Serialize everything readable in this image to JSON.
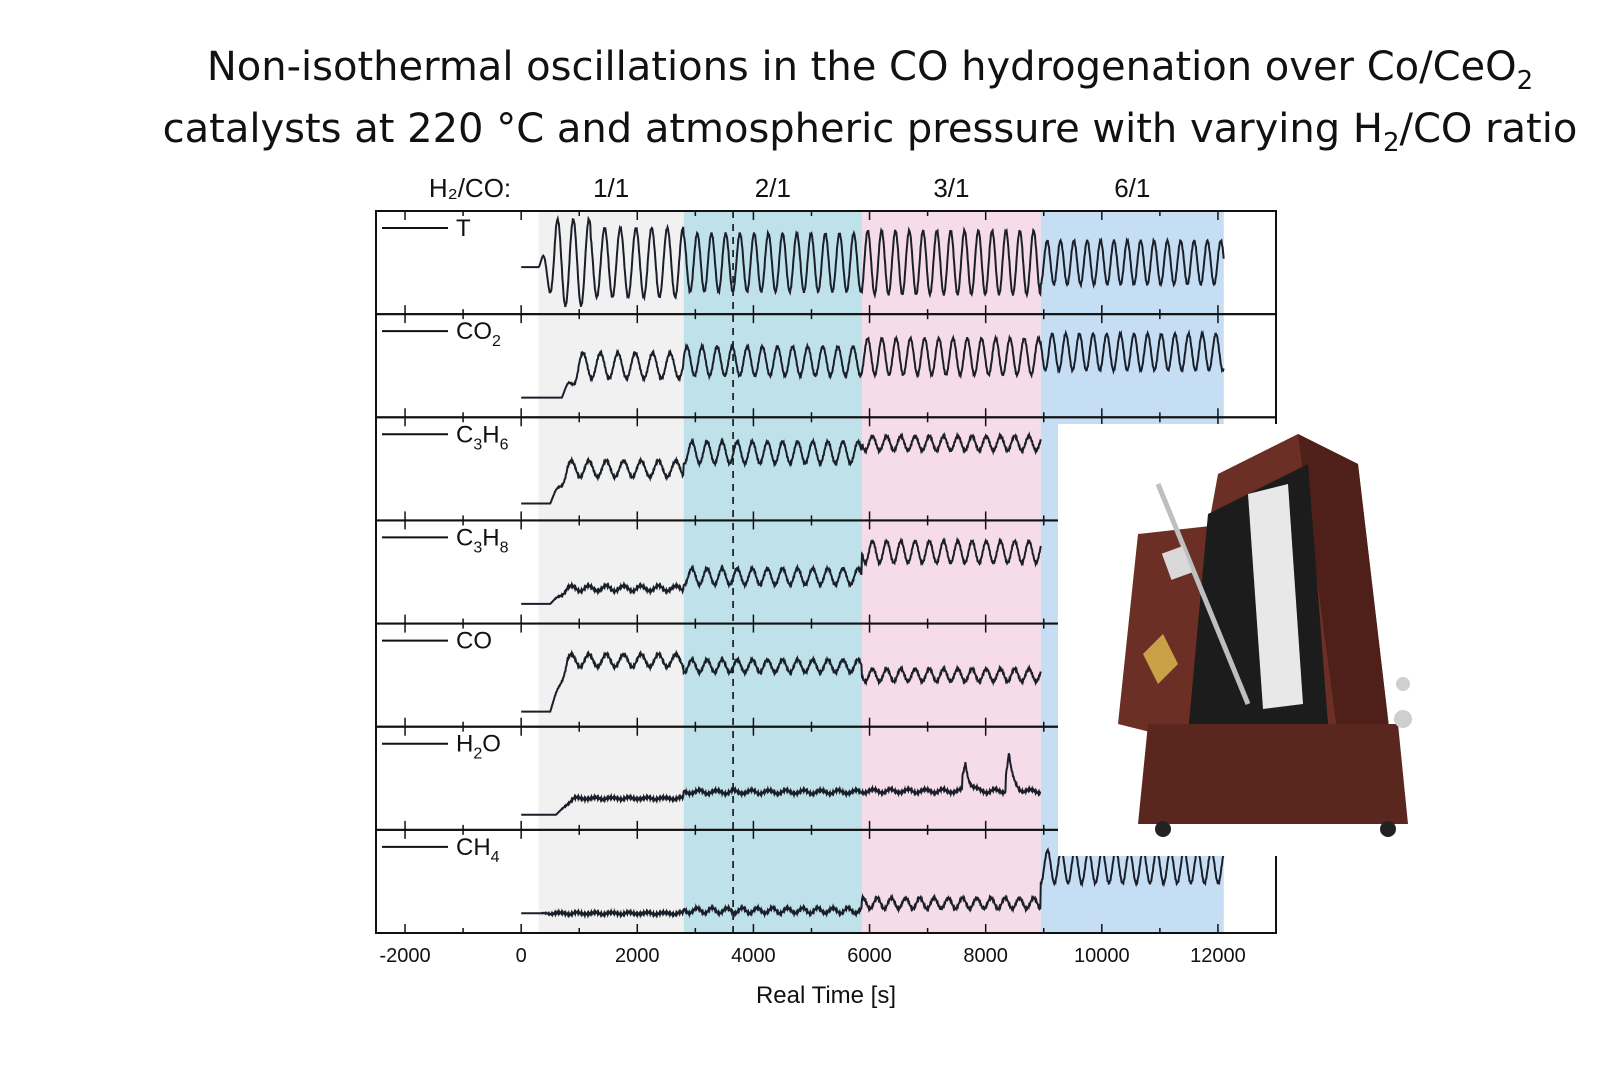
{
  "title": {
    "line1_a": "Non-isothermal oscillations in the CO hydrogenation over Co/CeO",
    "line1_sub": "2",
    "line2_a": "catalysts at 220 °C and atmospheric pressure with varying H",
    "line2_sub": "2",
    "line2_b": "/CO ratio"
  },
  "colors": {
    "region_1_1": "#f1f1f1",
    "region_2_1": "#bfe1ea",
    "region_3_1": "#f6dbe8",
    "region_6_1": "#c6def3",
    "trace": "#1a1f2a"
  },
  "metronome": {
    "image": "metronome photograph",
    "body": "#6b2f25",
    "highlight": "#8e4a3e",
    "scale": "#e8e8e8",
    "brass": "#c9a247"
  },
  "chart_data": {
    "type": "line",
    "xlabel": "Real Time [s]",
    "xlim": [
      -2500,
      13000
    ],
    "xticks": [
      -2000,
      0,
      2000,
      4000,
      6000,
      8000,
      10000,
      12000
    ],
    "ratio_label": "H₂/CO:",
    "regions": [
      {
        "label": "1/1",
        "x0": 300,
        "x1": 2800,
        "color_key": "region_1_1"
      },
      {
        "label": "2/1",
        "x0": 2800,
        "x1": 5870,
        "color_key": "region_2_1"
      },
      {
        "label": "3/1",
        "x0": 5870,
        "x1": 8950,
        "color_key": "region_3_1"
      },
      {
        "label": "6/1",
        "x0": 8950,
        "x1": 12100,
        "color_key": "region_6_1"
      }
    ],
    "dashed_marker_x": 3650,
    "series": [
      {
        "name": "T",
        "label_main": "T",
        "label_sub": "",
        "label_end": "",
        "start": 0,
        "end": 12100,
        "baseline": 0.45,
        "jump_at": 300,
        "levels": [
          0.5,
          0.5,
          0.5,
          0.5
        ],
        "amplitudes": [
          0.38,
          0.32,
          0.35,
          0.24
        ],
        "periods": [
          270,
          245,
          238,
          230
        ]
      },
      {
        "name": "CO₂",
        "label_main": "CO",
        "label_sub": "2",
        "label_end": "",
        "start": 0,
        "end": 12100,
        "baseline": 0.15,
        "jump_at": 700,
        "levels": [
          0.5,
          0.55,
          0.6,
          0.65
        ],
        "amplitudes": [
          0.14,
          0.16,
          0.2,
          0.2
        ],
        "periods": [
          300,
          260,
          245,
          235
        ]
      },
      {
        "name": "C₃H₆",
        "label_main": "C",
        "label_sub": "3",
        "label_end": "H6",
        "start": 0,
        "end": 8950,
        "baseline": 0.12,
        "jump_at": 500,
        "levels": [
          0.5,
          0.68,
          0.78,
          0.78
        ],
        "amplitudes": [
          0.09,
          0.12,
          0.08,
          0.08
        ],
        "periods": [
          300,
          260,
          245,
          245
        ]
      },
      {
        "name": "C₃H₈",
        "label_main": "C",
        "label_sub": "3",
        "label_end": "H8",
        "start": 0,
        "end": 8950,
        "baseline": 0.15,
        "jump_at": 500,
        "levels": [
          0.32,
          0.45,
          0.72,
          0.72
        ],
        "amplitudes": [
          0.03,
          0.09,
          0.12,
          0.12
        ],
        "periods": [
          300,
          260,
          245,
          245
        ]
      },
      {
        "name": "CO",
        "label_main": "CO",
        "label_sub": "",
        "label_end": "",
        "start": 0,
        "end": 8950,
        "baseline": 0.1,
        "jump_at": 500,
        "levels": [
          0.66,
          0.6,
          0.5,
          0.5
        ],
        "amplitudes": [
          0.07,
          0.07,
          0.07,
          0.07
        ],
        "periods": [
          300,
          260,
          245,
          245
        ]
      },
      {
        "name": "H₂O",
        "label_main": "H",
        "label_sub": "2",
        "label_end": "O",
        "start": 0,
        "end": 8950,
        "baseline": 0.1,
        "jump_at": 600,
        "levels": [
          0.28,
          0.35,
          0.36,
          0.36
        ],
        "amplitudes": [
          0.01,
          0.02,
          0.02,
          0.02
        ],
        "periods": [
          300,
          300,
          300,
          300
        ],
        "spikes": [
          [
            7650,
            0.32
          ],
          [
            8400,
            0.42
          ]
        ]
      },
      {
        "name": "CH₄",
        "label_main": "CH",
        "label_sub": "4",
        "label_end": "",
        "start": 0,
        "end": 12100,
        "baseline": 0.15,
        "jump_at": 300,
        "levels": [
          0.15,
          0.18,
          0.26,
          0.66
        ],
        "amplitudes": [
          0.01,
          0.03,
          0.06,
          0.18
        ],
        "periods": [
          300,
          260,
          245,
          235
        ]
      }
    ]
  }
}
